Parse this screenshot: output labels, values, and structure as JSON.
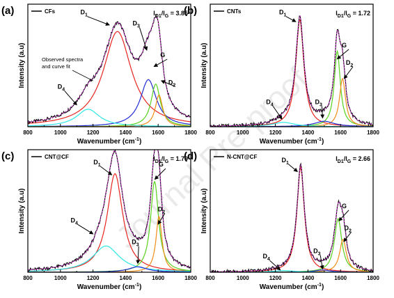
{
  "watermark": "Journal Pre-proof",
  "colors": {
    "observed": "#000000",
    "fit": "#cc33cc",
    "D1": "#e8231e",
    "D2": "#f28c18",
    "D3": "#1f2ad6",
    "D4": "#2ee6e6",
    "G": "#58d11b",
    "axis": "#000000"
  },
  "chart_data": [
    {
      "type": "line",
      "panel_label": "(a)",
      "legend": "CFs",
      "ratio_text": "3.85",
      "xlabel": "Wavenumber (cm",
      "xlabel_sup": "-1",
      "xlabel_end": ")",
      "ylabel": "Intensity (a.u)",
      "xlim": [
        800,
        1800
      ],
      "xticks": [
        "800",
        "1000",
        "1200",
        "1400",
        "1600",
        "1800"
      ],
      "annotation": "Observed spectra and curve fit",
      "peaks": [
        {
          "name": "D1",
          "center": 1350,
          "height": 0.87,
          "width": 210
        },
        {
          "name": "D3",
          "center": 1540,
          "height": 0.43,
          "width": 120
        },
        {
          "name": "G",
          "center": 1585,
          "height": 0.39,
          "width": 70
        },
        {
          "name": "D2",
          "center": 1605,
          "height": 0.29,
          "width": 55
        },
        {
          "name": "D4",
          "center": 1170,
          "height": 0.16,
          "width": 170
        }
      ],
      "labels": [
        {
          "name": "D",
          "sub": "1",
          "tx": 1140,
          "ty": 1.02,
          "ax": 1300,
          "ay": 0.93
        },
        {
          "name": "D",
          "sub": "3",
          "tx": 1460,
          "ty": 0.92,
          "ax": 1530,
          "ay": 0.7
        },
        {
          "name": "G",
          "sub": "",
          "tx": 1630,
          "ty": 0.63,
          "ax": 1575,
          "ay": 0.55
        },
        {
          "name": "D",
          "sub": "2",
          "tx": 1680,
          "ty": 0.38,
          "ax": 1620,
          "ay": 0.42
        },
        {
          "name": "D",
          "sub": "4",
          "tx": 1000,
          "ty": 0.34,
          "ax": 1100,
          "ay": 0.2
        }
      ]
    },
    {
      "type": "line",
      "panel_label": "(b)",
      "legend": "CNTs",
      "ratio_text": "1.72",
      "xlabel": "Wavenumber (cm",
      "xlabel_sup": "-1",
      "xlabel_end": ")",
      "ylabel": "Intensity (a.u)",
      "xlim": [
        800,
        1800
      ],
      "xticks": [
        "800",
        "1000",
        "1200",
        "1400",
        "1600",
        "1800"
      ],
      "annotation": "",
      "peaks": [
        {
          "name": "D1",
          "center": 1350,
          "height": 0.98,
          "width": 60
        },
        {
          "name": "G",
          "center": 1580,
          "height": 0.69,
          "width": 45
        },
        {
          "name": "D2",
          "center": 1612,
          "height": 0.44,
          "width": 45
        },
        {
          "name": "D3",
          "center": 1500,
          "height": 0.05,
          "width": 150
        },
        {
          "name": "D4",
          "center": 1250,
          "height": 0.04,
          "width": 160
        }
      ],
      "labels": [
        {
          "name": "D",
          "sub": "1",
          "tx": 1240,
          "ty": 1.02,
          "ax": 1325,
          "ay": 0.96
        },
        {
          "name": "D",
          "sub": "3",
          "tx": 1460,
          "ty": 0.2,
          "ax": 1490,
          "ay": 0.08
        },
        {
          "name": "G",
          "sub": "",
          "tx": 1625,
          "ty": 0.72,
          "ax": 1580,
          "ay": 0.62
        },
        {
          "name": "D",
          "sub": "2",
          "tx": 1650,
          "ty": 0.56,
          "ax": 1622,
          "ay": 0.44
        },
        {
          "name": "D",
          "sub": "4",
          "tx": 1160,
          "ty": 0.2,
          "ax": 1240,
          "ay": 0.07
        }
      ]
    },
    {
      "type": "line",
      "panel_label": "(c)",
      "legend": "CNT@CF",
      "ratio_text": "1.79",
      "xlabel": "Wavenumber (cm",
      "xlabel_sup": "-1",
      "xlabel_end": ")",
      "ylabel": "Intensity (a.u)",
      "xlim": [
        800,
        1800
      ],
      "xticks": [
        "800",
        "1000",
        "1200",
        "1400",
        "1600",
        "1800"
      ],
      "annotation": "",
      "peaks": [
        {
          "name": "D1",
          "center": 1335,
          "height": 0.9,
          "width": 115
        },
        {
          "name": "G",
          "center": 1578,
          "height": 0.83,
          "width": 60
        },
        {
          "name": "D2",
          "center": 1605,
          "height": 0.51,
          "width": 45
        },
        {
          "name": "D4",
          "center": 1280,
          "height": 0.24,
          "width": 200
        },
        {
          "name": "D3",
          "center": 1475,
          "height": 0.05,
          "width": 140
        }
      ],
      "labels": [
        {
          "name": "D",
          "sub": "1",
          "tx": 1220,
          "ty": 0.98,
          "ax": 1315,
          "ay": 0.89
        },
        {
          "name": "D",
          "sub": "3",
          "tx": 1455,
          "ty": 0.25,
          "ax": 1475,
          "ay": 0.08
        },
        {
          "name": "G",
          "sub": "",
          "tx": 1620,
          "ty": 0.96,
          "ax": 1580,
          "ay": 0.85
        },
        {
          "name": "D",
          "sub": "2",
          "tx": 1615,
          "ty": 0.55,
          "ax": 1600,
          "ay": 0.44
        },
        {
          "name": "D",
          "sub": "4",
          "tx": 1080,
          "ty": 0.45,
          "ax": 1200,
          "ay": 0.35
        }
      ]
    },
    {
      "type": "line",
      "panel_label": "(d)",
      "legend": "N-CNT@CF",
      "ratio_text": "2.66",
      "xlabel": "Wavenumber (cm",
      "xlabel_sup": "-1",
      "xlabel_end": ")",
      "ylabel": "Intensity (a.u)",
      "xlim": [
        800,
        1800
      ],
      "xticks": [
        "800",
        "1000",
        "1200",
        "1400",
        "1600",
        "1800"
      ],
      "annotation": "",
      "peaks": [
        {
          "name": "D1",
          "center": 1355,
          "height": 0.96,
          "width": 55
        },
        {
          "name": "G",
          "center": 1585,
          "height": 0.49,
          "width": 55
        },
        {
          "name": "D2",
          "center": 1615,
          "height": 0.3,
          "width": 50
        },
        {
          "name": "D3",
          "center": 1490,
          "height": 0.02,
          "width": 120
        },
        {
          "name": "D4",
          "center": 1250,
          "height": 0.015,
          "width": 160
        }
      ],
      "labels": [
        {
          "name": "D",
          "sub": "1",
          "tx": 1255,
          "ty": 1.0,
          "ax": 1335,
          "ay": 0.92
        },
        {
          "name": "D",
          "sub": "3",
          "tx": 1450,
          "ty": 0.17,
          "ax": 1490,
          "ay": 0.03
        },
        {
          "name": "G",
          "sub": "",
          "tx": 1625,
          "ty": 0.58,
          "ax": 1590,
          "ay": 0.47
        },
        {
          "name": "D",
          "sub": "2",
          "tx": 1640,
          "ty": 0.38,
          "ax": 1620,
          "ay": 0.28
        },
        {
          "name": "D",
          "sub": "4",
          "tx": 1140,
          "ty": 0.12,
          "ax": 1230,
          "ay": 0.02
        }
      ]
    }
  ]
}
